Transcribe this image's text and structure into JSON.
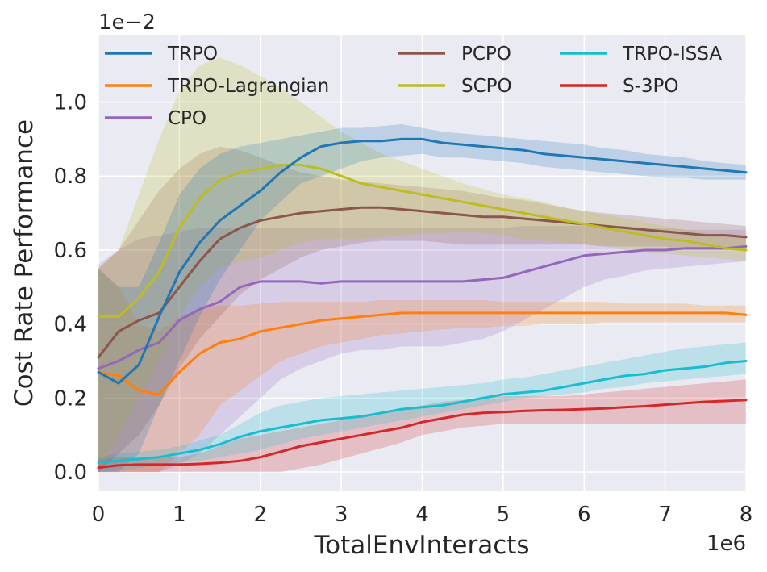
{
  "chart_data": {
    "type": "line",
    "title": "",
    "xlabel": "TotalEnvInteracts",
    "ylabel": "Cost Rate Performance",
    "x_offset_label": "1e6",
    "y_offset_label": "1e−2",
    "xlim": [
      0,
      8
    ],
    "ylim": [
      -0.05,
      1.18
    ],
    "x_ticks": [
      0,
      1,
      2,
      3,
      4,
      5,
      6,
      7,
      8
    ],
    "x_tick_labels": [
      "0",
      "1",
      "2",
      "3",
      "4",
      "5",
      "6",
      "7",
      "8"
    ],
    "y_ticks": [
      0.0,
      0.2,
      0.4,
      0.6,
      0.8,
      1.0
    ],
    "y_tick_labels": [
      "0.0",
      "0.2",
      "0.4",
      "0.6",
      "0.8",
      "1.0"
    ],
    "grid": true,
    "legend_position": "top",
    "x": [
      0,
      0.25,
      0.5,
      0.75,
      1,
      1.25,
      1.5,
      1.75,
      2,
      2.25,
      2.5,
      2.75,
      3,
      3.25,
      3.5,
      3.75,
      4,
      4.25,
      4.5,
      4.75,
      5,
      5.25,
      5.5,
      5.75,
      6,
      6.25,
      6.5,
      6.75,
      7,
      7.25,
      7.5,
      7.75,
      8
    ],
    "series": [
      {
        "name": "TRPO",
        "color": "#1f77b4",
        "values": [
          0.27,
          0.24,
          0.29,
          0.42,
          0.54,
          0.62,
          0.68,
          0.72,
          0.76,
          0.81,
          0.85,
          0.88,
          0.89,
          0.895,
          0.895,
          0.9,
          0.9,
          0.89,
          0.885,
          0.88,
          0.875,
          0.87,
          0.86,
          0.855,
          0.85,
          0.845,
          0.84,
          0.835,
          0.83,
          0.825,
          0.82,
          0.815,
          0.81
        ],
        "lower": [
          0.0,
          0.0,
          0.05,
          0.18,
          0.3,
          0.42,
          0.52,
          0.6,
          0.68,
          0.73,
          0.78,
          0.8,
          0.82,
          0.84,
          0.85,
          0.855,
          0.86,
          0.85,
          0.85,
          0.845,
          0.84,
          0.835,
          0.825,
          0.82,
          0.815,
          0.81,
          0.805,
          0.8,
          0.795,
          0.795,
          0.79,
          0.79,
          0.79
        ],
        "upper": [
          0.55,
          0.5,
          0.5,
          0.62,
          0.75,
          0.82,
          0.86,
          0.88,
          0.89,
          0.9,
          0.91,
          0.92,
          0.93,
          0.93,
          0.935,
          0.94,
          0.93,
          0.92,
          0.915,
          0.91,
          0.905,
          0.9,
          0.895,
          0.89,
          0.885,
          0.875,
          0.87,
          0.86,
          0.855,
          0.85,
          0.84,
          0.835,
          0.83
        ]
      },
      {
        "name": "TRPO-Lagrangian",
        "color": "#ff7f0e",
        "values": [
          0.27,
          0.26,
          0.22,
          0.21,
          0.27,
          0.32,
          0.35,
          0.36,
          0.38,
          0.39,
          0.4,
          0.41,
          0.415,
          0.42,
          0.425,
          0.43,
          0.43,
          0.43,
          0.43,
          0.43,
          0.43,
          0.43,
          0.43,
          0.43,
          0.43,
          0.43,
          0.43,
          0.43,
          0.43,
          0.43,
          0.43,
          0.43,
          0.425
        ],
        "lower": [
          0.0,
          0.0,
          0.0,
          0.0,
          0.05,
          0.1,
          0.18,
          0.22,
          0.26,
          0.3,
          0.32,
          0.34,
          0.35,
          0.36,
          0.37,
          0.375,
          0.38,
          0.385,
          0.39,
          0.39,
          0.395,
          0.395,
          0.4,
          0.4,
          0.4,
          0.405,
          0.405,
          0.405,
          0.405,
          0.405,
          0.405,
          0.405,
          0.405
        ],
        "upper": [
          0.55,
          0.5,
          0.4,
          0.38,
          0.42,
          0.44,
          0.45,
          0.45,
          0.455,
          0.46,
          0.46,
          0.46,
          0.46,
          0.46,
          0.465,
          0.465,
          0.465,
          0.465,
          0.465,
          0.465,
          0.46,
          0.46,
          0.46,
          0.46,
          0.46,
          0.46,
          0.455,
          0.455,
          0.455,
          0.455,
          0.45,
          0.45,
          0.45
        ]
      },
      {
        "name": "CPO",
        "color": "#9467bd",
        "values": [
          0.28,
          0.3,
          0.33,
          0.35,
          0.41,
          0.44,
          0.46,
          0.5,
          0.515,
          0.515,
          0.515,
          0.51,
          0.515,
          0.515,
          0.515,
          0.515,
          0.515,
          0.515,
          0.515,
          0.52,
          0.525,
          0.54,
          0.555,
          0.57,
          0.585,
          0.59,
          0.595,
          0.6,
          0.6,
          0.605,
          0.605,
          0.605,
          0.61
        ],
        "lower": [
          0.0,
          0.0,
          0.0,
          0.0,
          0.02,
          0.05,
          0.1,
          0.15,
          0.2,
          0.25,
          0.28,
          0.3,
          0.32,
          0.33,
          0.33,
          0.34,
          0.34,
          0.34,
          0.35,
          0.36,
          0.38,
          0.41,
          0.44,
          0.47,
          0.5,
          0.52,
          0.53,
          0.545,
          0.55,
          0.555,
          0.56,
          0.565,
          0.57
        ],
        "upper": [
          0.56,
          0.6,
          0.63,
          0.64,
          0.65,
          0.66,
          0.66,
          0.66,
          0.66,
          0.66,
          0.66,
          0.66,
          0.66,
          0.66,
          0.66,
          0.66,
          0.66,
          0.66,
          0.66,
          0.66,
          0.66,
          0.665,
          0.665,
          0.665,
          0.665,
          0.665,
          0.665,
          0.66,
          0.66,
          0.655,
          0.655,
          0.655,
          0.655
        ]
      },
      {
        "name": "PCPO",
        "color": "#8c564b",
        "values": [
          0.31,
          0.38,
          0.41,
          0.43,
          0.5,
          0.57,
          0.63,
          0.66,
          0.68,
          0.69,
          0.7,
          0.705,
          0.71,
          0.715,
          0.715,
          0.71,
          0.705,
          0.7,
          0.695,
          0.69,
          0.69,
          0.685,
          0.68,
          0.675,
          0.67,
          0.665,
          0.66,
          0.655,
          0.65,
          0.645,
          0.64,
          0.64,
          0.635
        ],
        "lower": [
          0.0,
          0.05,
          0.1,
          0.18,
          0.28,
          0.36,
          0.42,
          0.48,
          0.52,
          0.55,
          0.58,
          0.6,
          0.61,
          0.62,
          0.625,
          0.625,
          0.625,
          0.62,
          0.615,
          0.615,
          0.615,
          0.615,
          0.615,
          0.615,
          0.615,
          0.61,
          0.61,
          0.61,
          0.61,
          0.6,
          0.6,
          0.6,
          0.6
        ],
        "upper": [
          0.55,
          0.6,
          0.68,
          0.76,
          0.82,
          0.86,
          0.88,
          0.87,
          0.85,
          0.83,
          0.81,
          0.8,
          0.79,
          0.785,
          0.78,
          0.775,
          0.77,
          0.765,
          0.76,
          0.75,
          0.74,
          0.735,
          0.725,
          0.715,
          0.705,
          0.7,
          0.695,
          0.69,
          0.685,
          0.68,
          0.675,
          0.67,
          0.665
        ]
      },
      {
        "name": "SCPO",
        "color": "#bcbd22",
        "values": [
          0.42,
          0.42,
          0.47,
          0.54,
          0.66,
          0.74,
          0.79,
          0.81,
          0.82,
          0.83,
          0.83,
          0.82,
          0.8,
          0.78,
          0.77,
          0.76,
          0.75,
          0.74,
          0.73,
          0.72,
          0.71,
          0.7,
          0.69,
          0.68,
          0.67,
          0.66,
          0.65,
          0.64,
          0.63,
          0.625,
          0.615,
          0.605,
          0.6
        ],
        "lower": [
          0.0,
          0.1,
          0.2,
          0.3,
          0.42,
          0.5,
          0.55,
          0.57,
          0.58,
          0.6,
          0.62,
          0.63,
          0.63,
          0.63,
          0.635,
          0.64,
          0.645,
          0.645,
          0.65,
          0.645,
          0.64,
          0.63,
          0.625,
          0.62,
          0.615,
          0.61,
          0.6,
          0.595,
          0.59,
          0.585,
          0.58,
          0.575,
          0.57
        ],
        "upper": [
          0.55,
          0.6,
          0.75,
          0.9,
          1.03,
          1.1,
          1.12,
          1.1,
          1.07,
          1.04,
          1.0,
          0.96,
          0.92,
          0.89,
          0.86,
          0.84,
          0.82,
          0.8,
          0.78,
          0.765,
          0.75,
          0.74,
          0.73,
          0.715,
          0.705,
          0.695,
          0.685,
          0.675,
          0.665,
          0.655,
          0.645,
          0.64,
          0.635
        ]
      },
      {
        "name": "TRPO-ISSA",
        "color": "#17becf",
        "values": [
          0.025,
          0.03,
          0.035,
          0.04,
          0.05,
          0.06,
          0.075,
          0.095,
          0.11,
          0.12,
          0.13,
          0.14,
          0.145,
          0.15,
          0.16,
          0.17,
          0.175,
          0.18,
          0.19,
          0.2,
          0.21,
          0.215,
          0.22,
          0.23,
          0.24,
          0.25,
          0.26,
          0.265,
          0.275,
          0.28,
          0.285,
          0.295,
          0.3
        ],
        "lower": [
          0.0,
          0.005,
          0.01,
          0.02,
          0.025,
          0.03,
          0.04,
          0.05,
          0.06,
          0.075,
          0.09,
          0.1,
          0.11,
          0.12,
          0.13,
          0.14,
          0.15,
          0.16,
          0.17,
          0.18,
          0.19,
          0.2,
          0.205,
          0.21,
          0.215,
          0.225,
          0.23,
          0.24,
          0.245,
          0.25,
          0.255,
          0.26,
          0.265
        ],
        "upper": [
          0.04,
          0.05,
          0.055,
          0.06,
          0.07,
          0.085,
          0.1,
          0.13,
          0.16,
          0.18,
          0.19,
          0.2,
          0.205,
          0.21,
          0.215,
          0.22,
          0.225,
          0.23,
          0.235,
          0.24,
          0.25,
          0.255,
          0.265,
          0.275,
          0.285,
          0.295,
          0.305,
          0.315,
          0.325,
          0.335,
          0.34,
          0.345,
          0.35
        ]
      },
      {
        "name": "S-3PO",
        "color": "#d62728",
        "values": [
          0.012,
          0.018,
          0.02,
          0.02,
          0.02,
          0.022,
          0.025,
          0.03,
          0.04,
          0.055,
          0.07,
          0.08,
          0.09,
          0.1,
          0.11,
          0.12,
          0.135,
          0.145,
          0.155,
          0.16,
          0.162,
          0.165,
          0.167,
          0.168,
          0.17,
          0.172,
          0.175,
          0.178,
          0.182,
          0.186,
          0.19,
          0.192,
          0.195
        ],
        "lower": [
          0.0,
          0.0,
          0.0,
          0.0,
          0.0,
          0.0,
          0.0,
          0.0,
          0.0,
          0.0,
          0.01,
          0.02,
          0.035,
          0.05,
          0.065,
          0.08,
          0.1,
          0.11,
          0.12,
          0.125,
          0.13,
          0.13,
          0.13,
          0.13,
          0.13,
          0.13,
          0.13,
          0.13,
          0.13,
          0.13,
          0.13,
          0.13,
          0.13
        ],
        "upper": [
          0.035,
          0.04,
          0.04,
          0.04,
          0.04,
          0.05,
          0.07,
          0.09,
          0.1,
          0.11,
          0.12,
          0.13,
          0.14,
          0.15,
          0.16,
          0.17,
          0.18,
          0.19,
          0.195,
          0.2,
          0.205,
          0.205,
          0.205,
          0.205,
          0.21,
          0.215,
          0.22,
          0.225,
          0.23,
          0.235,
          0.24,
          0.245,
          0.25
        ]
      }
    ]
  }
}
